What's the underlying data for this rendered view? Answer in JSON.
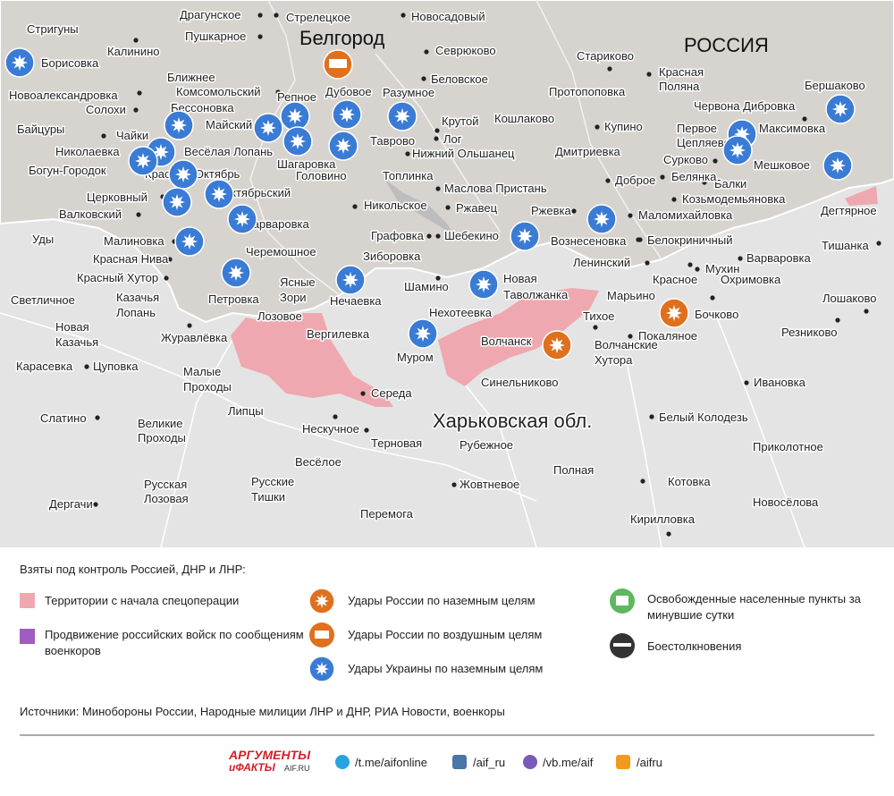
{
  "map": {
    "city_label": "Белгород",
    "country_label": "РОССИЯ",
    "region_label": "Харьковская обл.",
    "places": [
      "Драгунское",
      "Стрелецкое",
      "Новосадовый",
      "Пушкарное",
      "Стригуны",
      "Калинино",
      "Борисовка",
      "Севрюково",
      "Беловское",
      "Стариково",
      "Красная Поляна",
      "Протопоповка",
      "Ближнее",
      "Комсомольский",
      "Новоалександровка",
      "Солохи",
      "Бессоновка",
      "Репное",
      "Дубовое",
      "Разумное",
      "Червона Дибровка",
      "Бершаково",
      "Крутой",
      "Кошлаково",
      "Купино",
      "Первое Цепляево",
      "Максимовка",
      "Байцуры",
      "Майский",
      "Таврово",
      "Лог",
      "Чайки",
      "Николаевка",
      "Весёлая Лопань",
      "Нижний Ольшанец",
      "Дмитриевка",
      "Сурково",
      "Богун-Городок",
      "Красный Октябрь",
      "Шагаровка",
      "Головино",
      "Мешковое",
      "Балки",
      "Топлинка",
      "Доброе",
      "Белянка",
      "Маслова Пристань",
      "Церковный",
      "Октябрьский",
      "Козьмодемьяновка",
      "Никольское",
      "Ржавец",
      "Ржевка",
      "Дегтярное",
      "Валковский",
      "Маломихайловка",
      "Варваровка",
      "Уды",
      "Графовка",
      "Шебекино",
      "Вознесеновка",
      "Белокриничный",
      "Тишанка",
      "Малиновка",
      "Черемошное",
      "Красная Нива",
      "Зиборовка",
      "Ленинский",
      "Мухин",
      "Варваровка",
      "Красный Хутор",
      "Ясные Зори",
      "Шамино",
      "Новая Таволжанка",
      "Красное",
      "Охримовка",
      "Светличное",
      "Казачья Лопань",
      "Петровка",
      "Нечаевка",
      "Марьино",
      "Лошаково",
      "Нехотеевка",
      "Тихое",
      "Бочково",
      "Лозовое",
      "Новая Казачья",
      "Журавлёвка",
      "Вергилевка",
      "Волчанск",
      "Покаляное",
      "Резниково",
      "Волчанские Хутора",
      "Муром",
      "Карасевка",
      "Цуповка",
      "Малые Проходы",
      "Синельниково",
      "Ивановка",
      "Середа",
      "Слатино",
      "Липцы",
      "Нескучное",
      "Белый Колодезь",
      "Великие Проходы",
      "Терновая",
      "Рубежное",
      "Приколотное",
      "Весёлое",
      "Полная",
      "Русские Тишки",
      "Русская Лозовая",
      "Котовка",
      "Жовтневое",
      "Новосёлова",
      "Дергачи",
      "Перемога",
      "Кирилловка"
    ]
  },
  "legend": {
    "title": "Взяты под контроль Россией, ДНР и ЛНР:",
    "items": [
      "Территории с начала спецоперации",
      "Продвижение российских войск по сообщениям военкоров",
      "Удары России по наземным целям",
      "Удары России по воздушным целям",
      "Удары Украины по наземным целям",
      "Освобожденные населенные пункты за минувшие сутки",
      "Боестолкновения"
    ]
  },
  "sources": "Источники: Минобороны России, Народные милиции ЛНР и ДНР, РИА Новости, военкоры",
  "footer": {
    "brand_top": "АРГУМЕНТЫ",
    "brand_bottom": "иФАКТЫ",
    "brand_site": "AIF.RU",
    "links": [
      "/t.me/aifonline",
      "/aif_ru",
      "/vb.me/aif",
      "/aifru"
    ]
  }
}
